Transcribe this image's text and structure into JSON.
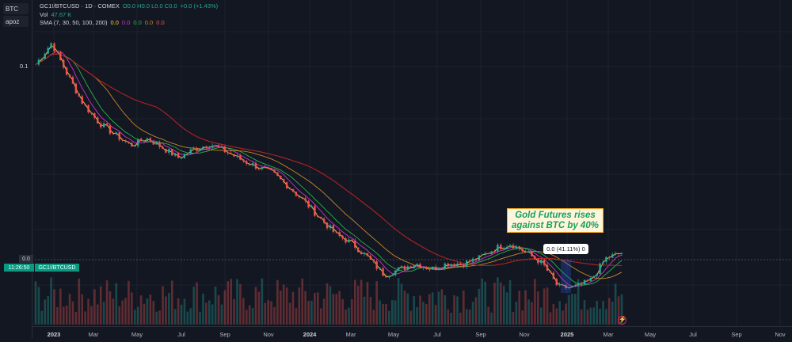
{
  "sidebar": {
    "buttons": [
      {
        "label": "BTC"
      },
      {
        "label": "apoz"
      }
    ]
  },
  "legend": {
    "symbol": "GC1!/BTCUSD · 1D · COMEX",
    "ohlc": "O0.0  H0.0  L0.0  C0.0",
    "change": "+0.0 (+1.43%)",
    "vol_label": "Vol",
    "vol_value": "47.67 K",
    "sma_label": "SMA (7, 30, 50, 100, 200)",
    "sma_values": [
      "0.0",
      "0.0",
      "0.0",
      "0.0",
      "0.0"
    ]
  },
  "colors": {
    "background": "#131722",
    "up": "#26a69a",
    "down": "#ef5350",
    "sma": [
      "#f5d142",
      "#cc33cc",
      "#26b24a",
      "#c8862a",
      "#b22222"
    ]
  },
  "y_axis": {
    "label": "0.1"
  },
  "price_tag": "0.0",
  "time_tag": "11:26:50",
  "symbol_tag": "GC1!/BTCUSD",
  "tooltip": "0.0 (41.11%) 0",
  "annotation": {
    "line1": "Gold  Futures rises",
    "line2": "against BTC by 40%"
  },
  "x_axis": {
    "ticks": [
      {
        "label": "2023",
        "bold": true
      },
      {
        "label": "Mar",
        "bold": false
      },
      {
        "label": "May",
        "bold": false
      },
      {
        "label": "Jul",
        "bold": false
      },
      {
        "label": "Sep",
        "bold": false
      },
      {
        "label": "Nov",
        "bold": false
      },
      {
        "label": "2024",
        "bold": true
      },
      {
        "label": "Mar",
        "bold": false
      },
      {
        "label": "May",
        "bold": false
      },
      {
        "label": "Jul",
        "bold": false
      },
      {
        "label": "Sep",
        "bold": false
      },
      {
        "label": "Nov",
        "bold": false
      },
      {
        "label": "2025",
        "bold": true
      },
      {
        "label": "Mar",
        "bold": false
      },
      {
        "label": "May",
        "bold": false
      },
      {
        "label": "Jul",
        "bold": false
      },
      {
        "label": "Sep",
        "bold": false
      },
      {
        "label": "Nov",
        "bold": false
      }
    ]
  },
  "chart_data": {
    "type": "line",
    "title": "",
    "xlabel": "",
    "ylabel": "",
    "log_scale": true,
    "grid": true,
    "series": [
      {
        "values": [
          0.12,
          0.145,
          0.11,
          0.085,
          0.072,
          0.065,
          0.059,
          0.063,
          0.058,
          0.053,
          0.057,
          0.06,
          0.056,
          0.052,
          0.049,
          0.046,
          0.041,
          0.036,
          0.031,
          0.027,
          0.025,
          0.022,
          0.019,
          0.02,
          0.021,
          0.02,
          0.021,
          0.021,
          0.022,
          0.024,
          0.025,
          0.023,
          0.021,
          0.017,
          0.017,
          0.018,
          0.022,
          0.023
        ]
      },
      {
        "name": "SMA 200",
        "values": [
          0.105,
          0.094,
          0.086,
          0.081,
          0.077,
          0.073,
          0.069,
          0.066,
          0.062,
          0.059,
          0.056,
          0.053,
          0.049,
          0.046,
          0.043,
          0.039,
          0.036,
          0.033,
          0.031,
          0.029,
          0.027,
          0.025,
          0.024,
          0.023,
          0.022,
          0.022,
          0.0215,
          0.0212,
          0.0212,
          0.0213,
          0.0214,
          0.0213,
          0.0211,
          0.0208,
          0.0205,
          0.0203,
          0.0201,
          0.02
        ]
      }
    ]
  }
}
